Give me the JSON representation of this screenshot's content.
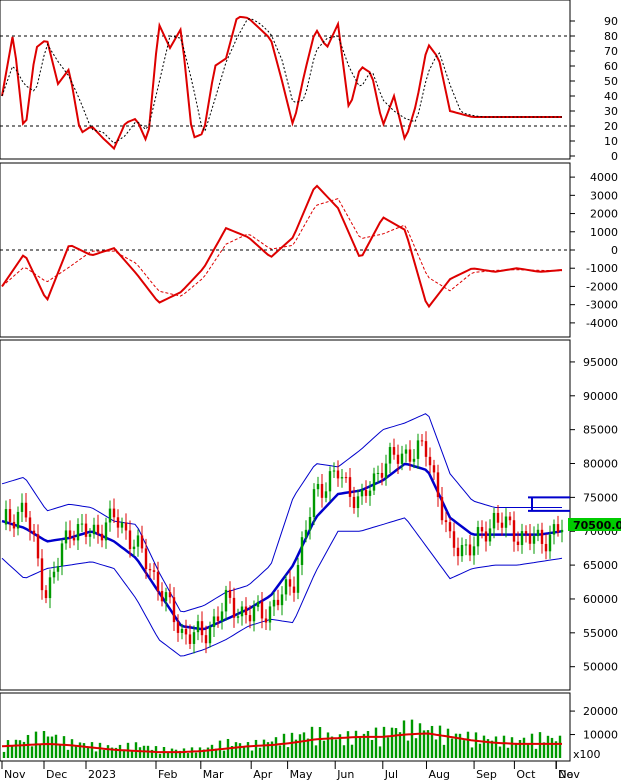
{
  "chart_data": [
    {
      "type": "line",
      "panel": "oscillator",
      "ylim": [
        0,
        100
      ],
      "yticks": [
        0,
        10,
        20,
        30,
        40,
        50,
        60,
        70,
        80,
        90
      ],
      "reference_lines": [
        20,
        80
      ],
      "x": [
        0,
        0.02,
        0.04,
        0.06,
        0.08,
        0.1,
        0.12,
        0.14,
        0.16,
        0.18,
        0.2,
        0.22,
        0.24,
        0.26,
        0.28,
        0.3,
        0.32,
        0.34,
        0.36,
        0.38,
        0.4,
        0.42,
        0.44,
        0.46,
        0.48,
        0.5,
        0.52,
        0.54,
        0.56,
        0.58,
        0.6,
        0.62,
        0.64,
        0.66,
        0.68,
        0.7,
        0.72,
        0.74,
        0.76,
        0.78,
        0.8,
        0.82,
        0.84,
        0.86,
        0.88,
        0.9,
        0.92,
        0.94,
        0.96,
        0.98,
        1.0
      ],
      "series": [
        {
          "values": [
            40,
            82,
            13,
            72,
            78,
            48,
            58,
            15,
            20,
            12,
            5,
            22,
            25,
            8,
            88,
            72,
            85,
            12,
            15,
            60,
            65,
            93,
            92,
            85,
            78,
            50,
            20,
            55,
            85,
            72,
            88,
            30,
            60,
            55,
            20,
            40,
            10,
            35,
            75,
            65,
            30,
            28,
            26,
            26,
            26,
            26,
            26,
            26,
            26,
            26,
            26
          ],
          "color": "#dd0000"
        }
      ]
    },
    {
      "type": "line",
      "panel": "momentum",
      "ylim": [
        -4500,
        4500
      ],
      "yticks": [
        -4000,
        -3000,
        -2000,
        -1000,
        0,
        1000,
        2000,
        3000,
        4000
      ],
      "reference_lines": [
        0
      ],
      "x": [
        0,
        0.04,
        0.08,
        0.12,
        0.16,
        0.2,
        0.24,
        0.28,
        0.32,
        0.36,
        0.4,
        0.44,
        0.48,
        0.52,
        0.56,
        0.6,
        0.64,
        0.68,
        0.72,
        0.76,
        0.8,
        0.84,
        0.88,
        0.92,
        0.96,
        1.0
      ],
      "series": [
        {
          "values": [
            -2000,
            -200,
            -2800,
            300,
            -300,
            100,
            -1300,
            -2900,
            -2300,
            -1000,
            1200,
            700,
            -400,
            700,
            3600,
            2300,
            -500,
            1800,
            1100,
            -3200,
            -1600,
            -1000,
            -1200,
            -1000,
            -1200,
            -1100
          ],
          "color": "#dd0000"
        }
      ]
    },
    {
      "type": "candlestick",
      "panel": "price",
      "ylim": [
        47000,
        97500
      ],
      "yticks": [
        50000,
        55000,
        60000,
        65000,
        70000,
        75000,
        80000,
        85000,
        90000,
        95000
      ],
      "last_price": "70500.00",
      "resistance_level": 75000,
      "support_level": 73000,
      "xlabels": [
        "Nov",
        "Dec",
        "2023",
        "Feb",
        "Mar",
        "Apr",
        "May",
        "Jun",
        "Jul",
        "Aug",
        "Sep",
        "Oct",
        "Nov",
        "De"
      ],
      "x": [
        0,
        0.04,
        0.08,
        0.12,
        0.16,
        0.2,
        0.24,
        0.28,
        0.32,
        0.36,
        0.4,
        0.44,
        0.48,
        0.52,
        0.56,
        0.6,
        0.64,
        0.68,
        0.72,
        0.76,
        0.8,
        0.84,
        0.88,
        0.92,
        0.96,
        1.0
      ],
      "close": [
        71000,
        73500,
        60500,
        70500,
        69500,
        72000,
        68000,
        62000,
        55000,
        54500,
        59500,
        57500,
        58500,
        62500,
        76000,
        78500,
        74000,
        80000,
        81500,
        82000,
        68000,
        67500,
        72000,
        69500,
        68500,
        70500
      ],
      "bollinger_mid": [
        71500,
        70500,
        68500,
        69000,
        70000,
        68500,
        66000,
        61000,
        56000,
        55500,
        57000,
        58500,
        60500,
        65000,
        72000,
        75500,
        76000,
        77500,
        80000,
        79000,
        72000,
        69500,
        69500,
        69500,
        69500,
        70000
      ],
      "bollinger_upper": [
        77000,
        78000,
        73000,
        74000,
        73500,
        71500,
        71000,
        64000,
        58000,
        59000,
        61000,
        62000,
        65000,
        75000,
        80000,
        79500,
        82000,
        85000,
        86000,
        87500,
        78500,
        74500,
        73500,
        73500,
        73500,
        73500
      ],
      "bollinger_lower": [
        66000,
        63000,
        64500,
        65000,
        65500,
        64500,
        60000,
        54000,
        51500,
        52500,
        54000,
        56000,
        57000,
        56500,
        64000,
        70000,
        70000,
        71000,
        72000,
        67500,
        63000,
        64500,
        65000,
        65000,
        65500,
        66000
      ]
    },
    {
      "type": "bar",
      "panel": "volume",
      "ylabel_multiplier": "x100",
      "ylim": [
        0,
        26000
      ],
      "yticks": [
        10000,
        20000
      ],
      "x": [
        0,
        0.04,
        0.08,
        0.12,
        0.16,
        0.2,
        0.24,
        0.28,
        0.32,
        0.36,
        0.4,
        0.44,
        0.48,
        0.52,
        0.56,
        0.6,
        0.64,
        0.68,
        0.72,
        0.76,
        0.8,
        0.84,
        0.88,
        0.92,
        0.96,
        1.0
      ],
      "values": [
        5000,
        7000,
        9000,
        6000,
        5000,
        4000,
        5000,
        3500,
        3000,
        3500,
        6000,
        5000,
        6500,
        8000,
        10000,
        7500,
        9000,
        9500,
        12000,
        11000,
        9000,
        8000,
        7000,
        6500,
        8000,
        7000
      ],
      "moving_average": [
        5000,
        5500,
        6000,
        5500,
        4500,
        3500,
        3000,
        2500,
        2500,
        3000,
        4000,
        5000,
        5500,
        6500,
        8000,
        8500,
        9000,
        9000,
        10000,
        10500,
        9000,
        7500,
        6500,
        6000,
        6000,
        6000
      ]
    }
  ],
  "colors": {
    "up": "#009900",
    "down": "#dd0000",
    "bollinger": "#0000cc",
    "osc_line": "#dd0000",
    "grid": "#000000",
    "price_label_bg": "#00cc00"
  }
}
